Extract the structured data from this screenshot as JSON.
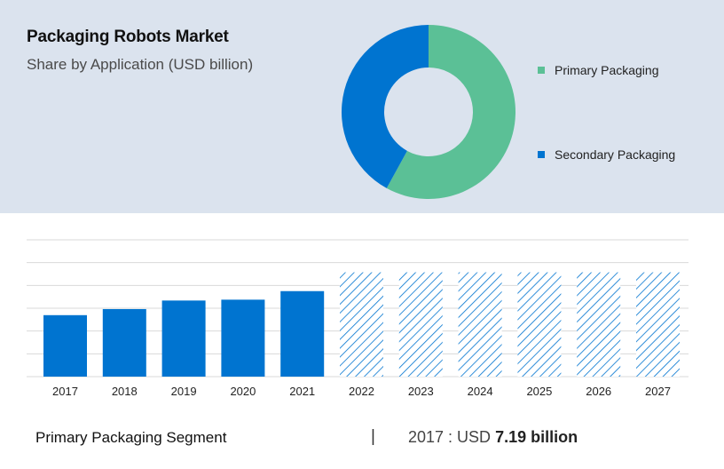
{
  "header": {
    "title": "Packaging Robots Market",
    "subtitle": "Share by Application (USD billion)"
  },
  "colors": {
    "panel_bg": "#dbe3ee",
    "primary": "#5bc096",
    "secondary": "#0074d0",
    "grid": "#d9d9d9"
  },
  "chart_data": [
    {
      "type": "pie",
      "donut": true,
      "labels": [
        "Primary Packaging",
        "Secondary Packaging"
      ],
      "values": [
        58,
        42
      ],
      "colors": [
        "#5bc096",
        "#0074d0"
      ],
      "legend_position": "right"
    },
    {
      "type": "bar",
      "categories": [
        "2017",
        "2018",
        "2019",
        "2020",
        "2021",
        "2022",
        "2023",
        "2024",
        "2025",
        "2026",
        "2027"
      ],
      "values": [
        7.19,
        7.9,
        8.9,
        9.0,
        10.0,
        12.2,
        12.2,
        12.2,
        12.2,
        12.2,
        12.2
      ],
      "forecast_from": "2022",
      "forecast_style": "hatched",
      "ylim": [
        0,
        16
      ],
      "grid": true,
      "color": "#0074d0",
      "title": "",
      "xlabel": "",
      "ylabel": ""
    }
  ],
  "footer": {
    "segment_label": "Primary Packaging Segment",
    "separator": "|",
    "year_text": "2017 : USD ",
    "value_text": "7.19 billion"
  }
}
